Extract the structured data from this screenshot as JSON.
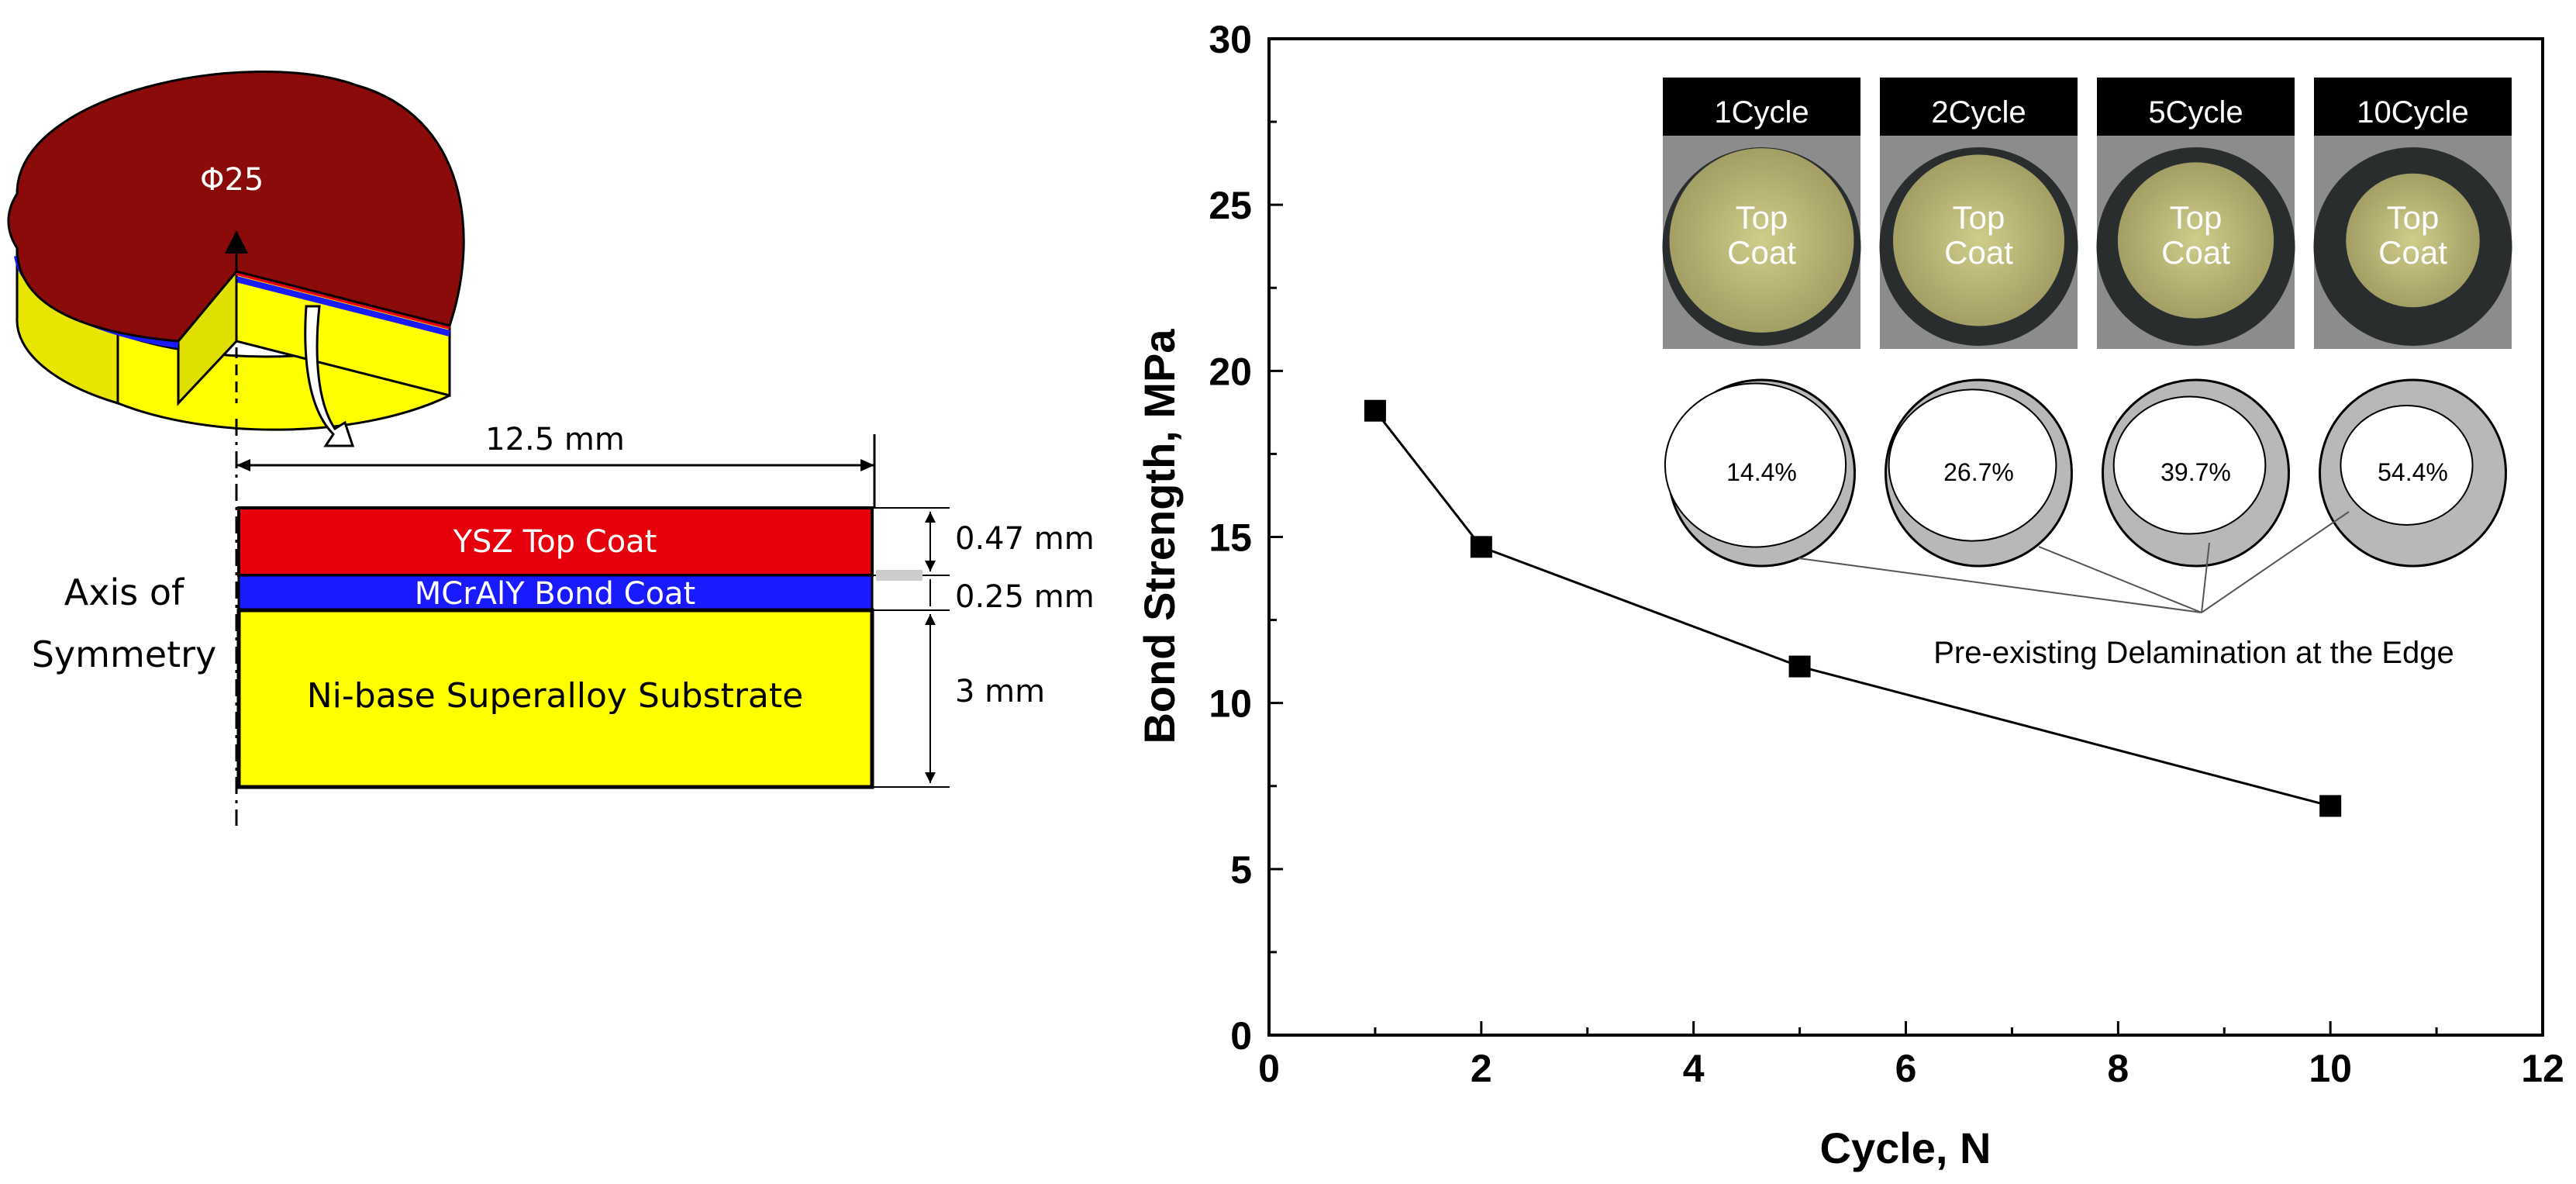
{
  "schematic": {
    "diameter_label": "Φ25",
    "radius_label": "12.5 mm",
    "axis_label_line1": "Axis of",
    "axis_label_line2": "Symmetry",
    "layers": [
      {
        "name": "YSZ Top Coat",
        "thickness": "0.47 mm",
        "color": "#e5000c"
      },
      {
        "name": "MCrAlY Bond Coat",
        "thickness": "0.25 mm",
        "color": "#1a1aff"
      },
      {
        "name": "Ni-base Superalloy Substrate",
        "thickness": "3 mm",
        "color": "#ffff00"
      }
    ],
    "disk_top_color": "#8b0a0a"
  },
  "chart_data": {
    "type": "line",
    "xlabel": "Cycle, N",
    "ylabel": "Bond Strength, MPa",
    "xlim": [
      0,
      12
    ],
    "ylim": [
      0,
      30
    ],
    "xticks": [
      0,
      2,
      4,
      6,
      8,
      10,
      12
    ],
    "yticks": [
      0,
      5,
      10,
      15,
      20,
      25,
      30
    ],
    "grid": false,
    "series": [
      {
        "x": [
          1,
          2,
          5,
          10
        ],
        "y": [
          18.8,
          14.7,
          11.1,
          6.9
        ],
        "marker": "square",
        "color": "#000000"
      }
    ],
    "insets": [
      {
        "title": "1Cycle",
        "label_line1": "Top",
        "label_line2": "Coat",
        "delamination": "14.4%"
      },
      {
        "title": "2Cycle",
        "label_line1": "Top",
        "label_line2": "Coat",
        "delamination": "26.7%"
      },
      {
        "title": "5Cycle",
        "label_line1": "Top",
        "label_line2": "Coat",
        "delamination": "39.7%"
      },
      {
        "title": "10Cycle",
        "label_line1": "Top",
        "label_line2": "Coat",
        "delamination": "54.4%"
      }
    ],
    "annotation": "Pre-existing Delamination at the Edge"
  }
}
